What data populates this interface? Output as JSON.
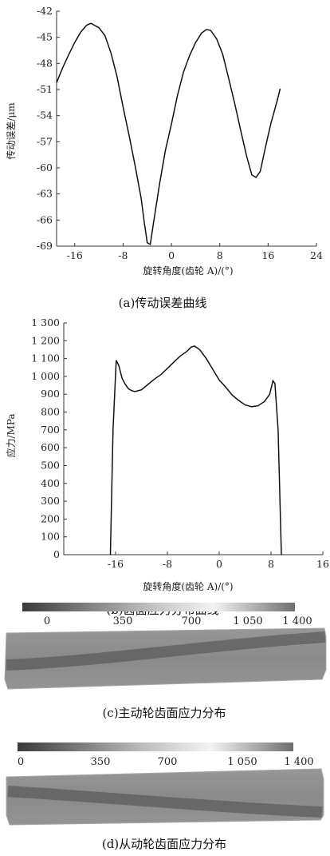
{
  "chart_data": [
    {
      "type": "line",
      "ylabel": "传动误差/μm",
      "xlabel": "旋转角度(齿轮 A)/(°)",
      "caption": "(a)传动误差曲线",
      "xlim": [
        -19,
        24
      ],
      "ylim": [
        -69,
        -42
      ],
      "xticks": [
        -16,
        -8,
        0,
        8,
        16,
        24
      ],
      "xtick_labels": [
        "-16",
        "-8",
        "0",
        "8",
        "16",
        "24"
      ],
      "yticks": [
        -42,
        -45,
        -48,
        -51,
        -54,
        -57,
        -60,
        -63,
        -66,
        -69
      ],
      "ytick_labels": [
        "-42",
        "-45",
        "-48",
        "-51",
        "-54",
        "-57",
        "-60",
        "-63",
        "-66",
        "-69"
      ],
      "grid": false,
      "series": [
        {
          "x": [
            -19,
            -18,
            -17,
            -16,
            -15,
            -14,
            -13.3,
            -12,
            -11,
            -10,
            -9,
            -8,
            -7,
            -6,
            -5,
            -4.5,
            -4,
            -3.5,
            -3,
            -2,
            -1,
            0,
            1,
            2,
            3,
            4,
            5,
            5.8,
            6.5,
            7.5,
            8.5,
            9.5,
            10.5,
            11.5,
            12.5,
            13.3,
            14,
            14.7,
            15.5,
            16.5,
            17.5,
            18
          ],
          "y": [
            -50.2,
            -48.5,
            -47.0,
            -45.6,
            -44.4,
            -43.6,
            -43.4,
            -43.9,
            -44.8,
            -46.8,
            -49.5,
            -53.0,
            -56.3,
            -59.8,
            -63.5,
            -66.2,
            -68.6,
            -68.8,
            -66.5,
            -62.0,
            -58.0,
            -55.0,
            -51.7,
            -49.0,
            -47.1,
            -45.6,
            -44.5,
            -44.1,
            -44.2,
            -45.2,
            -47.0,
            -49.8,
            -52.7,
            -55.8,
            -58.8,
            -60.8,
            -61.1,
            -60.4,
            -57.8,
            -54.8,
            -52.3,
            -50.9
          ]
        }
      ]
    },
    {
      "type": "line",
      "ylabel": "应力/MPa",
      "xlabel": "旋转角度(齿轮 A)/(°)",
      "caption": "(b)齿面应力分布曲线",
      "xlim": [
        -24,
        16
      ],
      "ylim": [
        0,
        1300
      ],
      "xticks": [
        -16,
        -8,
        0,
        8,
        16
      ],
      "xtick_labels": [
        "-16",
        "-8",
        "0",
        "8",
        "16"
      ],
      "yticks": [
        0,
        100,
        200,
        300,
        400,
        500,
        600,
        700,
        800,
        900,
        1000,
        1100,
        1200,
        1300
      ],
      "ytick_labels": [
        "0",
        "100",
        "200",
        "300",
        "400",
        "500",
        "600",
        "700",
        "800",
        "900",
        "1 000",
        "1 100",
        "1 200",
        "1 300"
      ],
      "grid": false,
      "series": [
        {
          "x": [
            -16.8,
            -16.4,
            -15.9,
            -15.5,
            -15.0,
            -14.5,
            -14.0,
            -13.5,
            -13.0,
            -12.0,
            -11.0,
            -10.0,
            -9.0,
            -8.0,
            -7.0,
            -6.0,
            -5.0,
            -4.3,
            -3.8,
            -3.0,
            -2.0,
            -1.0,
            0.0,
            1.0,
            2.0,
            3.0,
            4.0,
            5.0,
            6.0,
            7.0,
            7.8,
            8.3,
            8.6,
            9.1,
            9.6
          ],
          "y": [
            0,
            700,
            1090,
            1060,
            990,
            955,
            930,
            920,
            915,
            925,
            955,
            985,
            1010,
            1045,
            1080,
            1115,
            1140,
            1165,
            1170,
            1150,
            1100,
            1040,
            980,
            940,
            895,
            865,
            840,
            830,
            835,
            860,
            900,
            975,
            960,
            700,
            0
          ]
        }
      ]
    }
  ],
  "colorbars": [
    {
      "caption": "(c)主动轮齿面应力分布",
      "tick_labels": [
        "0",
        "350",
        "700",
        "1 050",
        "1 400"
      ],
      "ticks": [
        0,
        350,
        700,
        1050,
        1400
      ]
    },
    {
      "caption": "(d)从动轮齿面应力分布",
      "tick_labels": [
        "0",
        "350",
        "700",
        "1 050",
        "1 400"
      ],
      "ticks": [
        0,
        350,
        700,
        1050,
        1400
      ]
    }
  ],
  "colors": {
    "line": "#111111",
    "axis": "#333333",
    "surface": "#8c8c8c",
    "band": "#4a4a4a",
    "colorbar_dark": "#3a3a3a",
    "colorbar_light": "#f4f4f4"
  }
}
